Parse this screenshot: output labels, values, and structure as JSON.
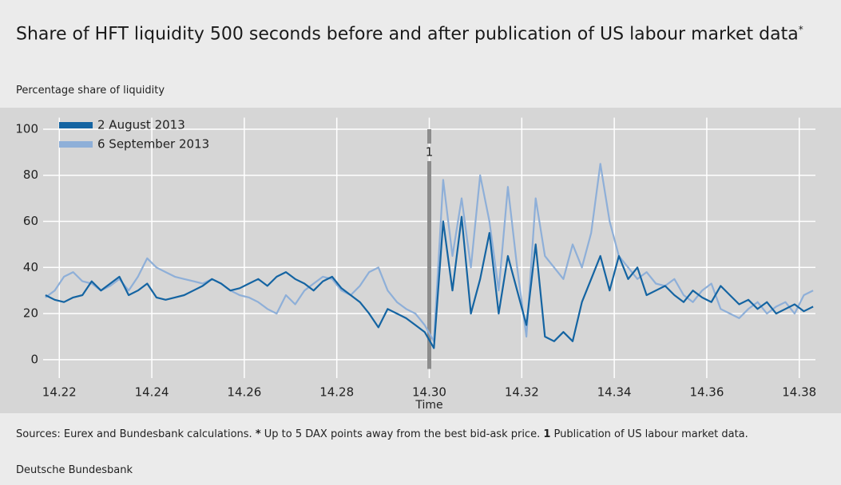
{
  "chart_data": {
    "type": "line",
    "title": "Share of HFT liquidity 500 seconds before and after publication of US labour market data",
    "title_note": "*",
    "subtitle": "Percentage share of liquidity",
    "xlabel": "Time",
    "x": [
      14.217,
      14.219,
      14.221,
      14.223,
      14.225,
      14.227,
      14.229,
      14.231,
      14.233,
      14.235,
      14.237,
      14.239,
      14.241,
      14.243,
      14.245,
      14.247,
      14.249,
      14.251,
      14.253,
      14.255,
      14.257,
      14.259,
      14.261,
      14.263,
      14.265,
      14.267,
      14.269,
      14.271,
      14.273,
      14.275,
      14.277,
      14.279,
      14.281,
      14.283,
      14.285,
      14.287,
      14.289,
      14.291,
      14.293,
      14.295,
      14.297,
      14.299,
      14.301,
      14.303,
      14.305,
      14.307,
      14.309,
      14.311,
      14.313,
      14.315,
      14.317,
      14.319,
      14.321,
      14.323,
      14.325,
      14.327,
      14.329,
      14.331,
      14.333,
      14.335,
      14.337,
      14.339,
      14.341,
      14.343,
      14.345,
      14.347,
      14.349,
      14.351,
      14.353,
      14.355,
      14.357,
      14.359,
      14.361,
      14.363,
      14.365,
      14.367,
      14.369,
      14.371,
      14.373,
      14.375,
      14.377,
      14.379,
      14.381,
      14.383
    ],
    "series": [
      {
        "name": "2 August 2013",
        "color": "#1464a2",
        "values": [
          28,
          26,
          25,
          27,
          28,
          34,
          30,
          33,
          36,
          28,
          30,
          33,
          27,
          26,
          27,
          28,
          30,
          32,
          35,
          33,
          30,
          31,
          33,
          35,
          32,
          36,
          38,
          35,
          33,
          30,
          34,
          36,
          31,
          28,
          25,
          20,
          14,
          22,
          20,
          18,
          15,
          12,
          5,
          60,
          30,
          62,
          20,
          35,
          55,
          20,
          45,
          30,
          15,
          50,
          10,
          8,
          12,
          8,
          25,
          35,
          45,
          30,
          45,
          35,
          40,
          28,
          30,
          32,
          28,
          25,
          30,
          27,
          25,
          32,
          28,
          24,
          26,
          22,
          25,
          20,
          22,
          24,
          21,
          23
        ]
      },
      {
        "name": "6 September 2013",
        "color": "#8eafd8",
        "values": [
          27,
          30,
          36,
          38,
          34,
          33,
          30,
          32,
          35,
          30,
          36,
          44,
          40,
          38,
          36,
          35,
          34,
          33,
          35,
          33,
          30,
          28,
          27,
          25,
          22,
          20,
          28,
          24,
          30,
          33,
          36,
          35,
          30,
          28,
          32,
          38,
          40,
          30,
          25,
          22,
          20,
          15,
          8,
          78,
          45,
          70,
          40,
          80,
          60,
          30,
          75,
          40,
          10,
          70,
          45,
          40,
          35,
          50,
          40,
          55,
          85,
          60,
          45,
          40,
          35,
          38,
          33,
          32,
          35,
          28,
          25,
          30,
          33,
          22,
          20,
          18,
          22,
          25,
          20,
          23,
          25,
          20,
          28,
          30
        ]
      }
    ],
    "annotations": [
      {
        "x": 14.3,
        "y": [
          -4,
          100
        ],
        "text": "1"
      }
    ],
    "xlim": [
      14.2165,
      14.3835
    ],
    "xticks": [
      14.22,
      14.24,
      14.26,
      14.28,
      {
        "value": 14.3,
        "label": "14.30"
      },
      14.32,
      14.34,
      14.36,
      14.38
    ],
    "ylim": [
      -8,
      105
    ],
    "yticks": [
      0,
      20,
      40,
      60,
      80,
      100
    ],
    "grid": true,
    "legend": "upper left",
    "source": "Sources: Eurex and Bundesbank calculations.",
    "notes": [
      {
        "marker": "*",
        "text": "Up to 5 DAX points away from the best bid-ask price."
      },
      {
        "marker": "1",
        "text": "Publication of US labour market data."
      }
    ],
    "credit": "Deutsche Bundesbank"
  }
}
